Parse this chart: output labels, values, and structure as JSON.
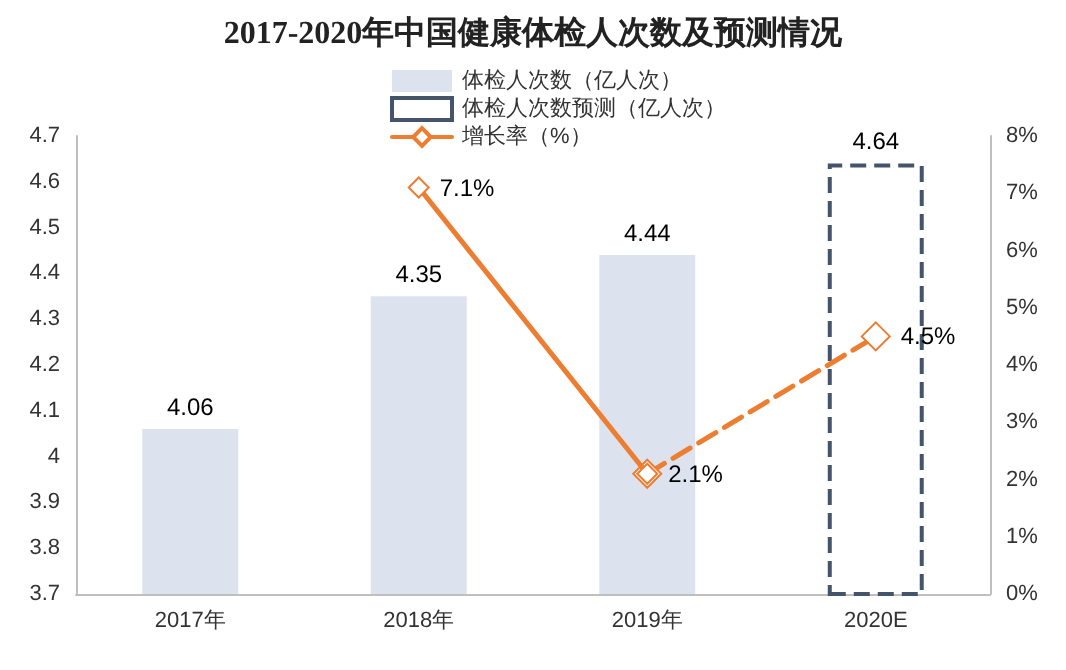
{
  "chart_data": {
    "type": "bar",
    "title": "2017-2020年中国健康体检人次数及预测情况",
    "categories": [
      "2017年",
      "2018年",
      "2019年",
      "2020E"
    ],
    "series": [
      {
        "name": "体检人次数（亿人次）",
        "color": "#dde3ee",
        "values": [
          4.06,
          4.35,
          4.44,
          null
        ],
        "value_labels": [
          "4.06",
          "4.35",
          "4.44",
          null
        ]
      },
      {
        "name": "体检人次数预测（亿人次）",
        "color": "#44546a",
        "line_style": "dashed",
        "values": [
          null,
          null,
          null,
          4.64
        ],
        "value_labels": [
          null,
          null,
          null,
          "4.64"
        ]
      },
      {
        "name": "增长率（%）",
        "type": "line",
        "axis": "y2",
        "color": "#ed7d31",
        "marker": "diamond",
        "line_style": "solid",
        "values": [
          null,
          7.1,
          2.1,
          null
        ],
        "value_labels": [
          null,
          "7.1%",
          "2.1%",
          null
        ]
      },
      {
        "type": "line",
        "axis": "y2",
        "color": "#ed7d31",
        "marker": "diamond",
        "line_style": "dashed",
        "values": [
          null,
          null,
          2.1,
          4.5
        ],
        "value_labels": [
          null,
          null,
          null,
          "4.5%"
        ]
      }
    ],
    "ylim": [
      3.7,
      4.7
    ],
    "yticks": [
      3.7,
      3.8,
      3.9,
      4,
      4.1,
      4.2,
      4.3,
      4.4,
      4.5,
      4.6,
      4.7
    ],
    "y2lim": [
      0,
      8
    ],
    "y2ticks": [
      {
        "value": 0,
        "label": "0%"
      },
      {
        "value": 1,
        "label": "1%"
      },
      {
        "value": 2,
        "label": "2%"
      },
      {
        "value": 3,
        "label": "3%"
      },
      {
        "value": 4,
        "label": "4%"
      },
      {
        "value": 5,
        "label": "5%"
      },
      {
        "value": 6,
        "label": "6%"
      },
      {
        "value": 7,
        "label": "7%"
      },
      {
        "value": 8,
        "label": "8%"
      }
    ],
    "grid": false,
    "legend": "top"
  }
}
